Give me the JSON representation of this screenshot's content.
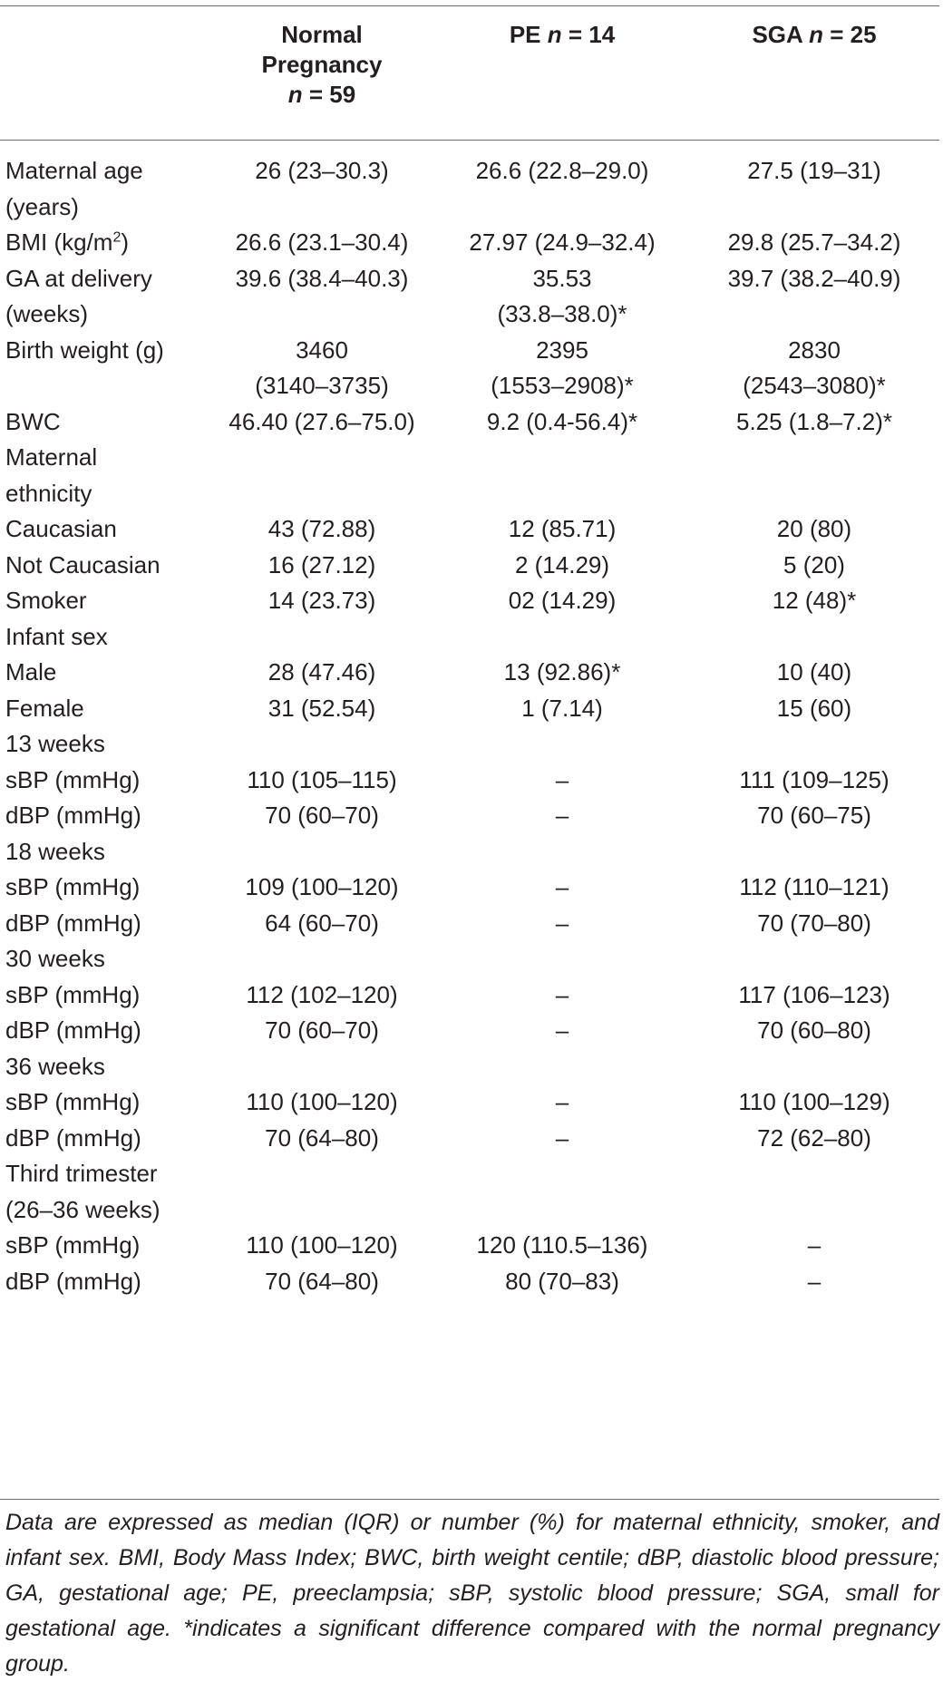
{
  "header": {
    "col1": {
      "line1": "Normal",
      "line2": "Pregnancy",
      "n_label": "n",
      "n_value": "= 59"
    },
    "col2": {
      "prefix": "PE",
      "n_label": "n",
      "n_value": "= 14"
    },
    "col3": {
      "prefix": "SGA",
      "n_label": "n",
      "n_value": "= 25"
    }
  },
  "rows": [
    {
      "label": "Maternal age\n(years)",
      "normal": "26 (23–30.3)",
      "pe": "26.6 (22.8–29.0)",
      "sga": "27.5 (19–31)"
    },
    {
      "label": "BMI (kg/m",
      "label_sup": "2",
      "label_after": ")",
      "normal": "26.6 (23.1–30.4)",
      "pe": "27.97 (24.9–32.4)",
      "sga": "29.8 (25.7–34.2)"
    },
    {
      "label": "GA at delivery\n(weeks)",
      "normal": "39.6 (38.4–40.3)",
      "pe": "35.53\n(33.8–38.0)*",
      "sga": "39.7 (38.2–40.9)"
    },
    {
      "label": "Birth weight (g)",
      "normal": "3460\n(3140–3735)",
      "pe": "2395\n(1553–2908)*",
      "sga": "2830\n(2543–3080)*"
    },
    {
      "label": "BWC",
      "normal": "46.40 (27.6–75.0)",
      "pe": "9.2 (0.4-56.4)*",
      "sga": "5.25 (1.8–7.2)*"
    },
    {
      "label": "Maternal\nethnicity",
      "normal": "",
      "pe": "",
      "sga": ""
    },
    {
      "label": "Caucasian",
      "normal": "43 (72.88)",
      "pe": "12 (85.71)",
      "sga": "20 (80)"
    },
    {
      "label": "Not Caucasian",
      "normal": "16 (27.12)",
      "pe": "2 (14.29)",
      "sga": "5 (20)"
    },
    {
      "label": "Smoker",
      "normal": "14 (23.73)",
      "pe": "02 (14.29)",
      "sga": "12 (48)*"
    },
    {
      "label": "Infant sex",
      "normal": "",
      "pe": "",
      "sga": ""
    },
    {
      "label": "Male",
      "normal": "28 (47.46)",
      "pe": "13 (92.86)*",
      "sga": "10 (40)"
    },
    {
      "label": "Female",
      "normal": "31 (52.54)",
      "pe": "1 (7.14)",
      "sga": "15 (60)"
    },
    {
      "label": "13 weeks",
      "normal": "",
      "pe": "",
      "sga": ""
    },
    {
      "label": "sBP (mmHg)",
      "normal": "110 (105–115)",
      "pe": "–",
      "sga": "111 (109–125)"
    },
    {
      "label": "dBP (mmHg)",
      "normal": "70 (60–70)",
      "pe": "–",
      "sga": "70 (60–75)"
    },
    {
      "label": "18 weeks",
      "normal": "",
      "pe": "",
      "sga": ""
    },
    {
      "label": "sBP (mmHg)",
      "normal": "109 (100–120)",
      "pe": "–",
      "sga": "112 (110–121)"
    },
    {
      "label": "dBP (mmHg)",
      "normal": "64 (60–70)",
      "pe": "–",
      "sga": "70 (70–80)"
    },
    {
      "label": "30 weeks",
      "normal": "",
      "pe": "",
      "sga": ""
    },
    {
      "label": "sBP (mmHg)",
      "normal": "112 (102–120)",
      "pe": "–",
      "sga": "117 (106–123)"
    },
    {
      "label": "dBP (mmHg)",
      "normal": "70 (60–70)",
      "pe": "–",
      "sga": "70 (60–80)"
    },
    {
      "label": "36 weeks",
      "normal": "",
      "pe": "",
      "sga": ""
    },
    {
      "label": "sBP (mmHg)",
      "normal": "110 (100–120)",
      "pe": "–",
      "sga": "110 (100–129)"
    },
    {
      "label": "dBP (mmHg)",
      "normal": "70 (64–80)",
      "pe": "–",
      "sga": "72 (62–80)"
    },
    {
      "label": "Third trimester\n(26–36 weeks)",
      "normal": "",
      "pe": "",
      "sga": ""
    },
    {
      "label": "sBP (mmHg)",
      "normal": "110 (100–120)",
      "pe": "120 (110.5–136)",
      "sga": "–"
    },
    {
      "label": "dBP (mmHg)",
      "normal": "70 (64–80)",
      "pe": "80 (70–83)",
      "sga": "–"
    }
  ],
  "footnote": "Data are expressed as median (IQR) or number (%) for maternal ethnicity, smoker, and infant sex. BMI, Body Mass Index; BWC, birth weight centile; dBP, diastolic blood pressure; GA, gestational age; PE, preeclampsia; sBP, systolic blood pressure; SGA, small for gestational age. *indicates a significant difference compared with the normal pregnancy group."
}
